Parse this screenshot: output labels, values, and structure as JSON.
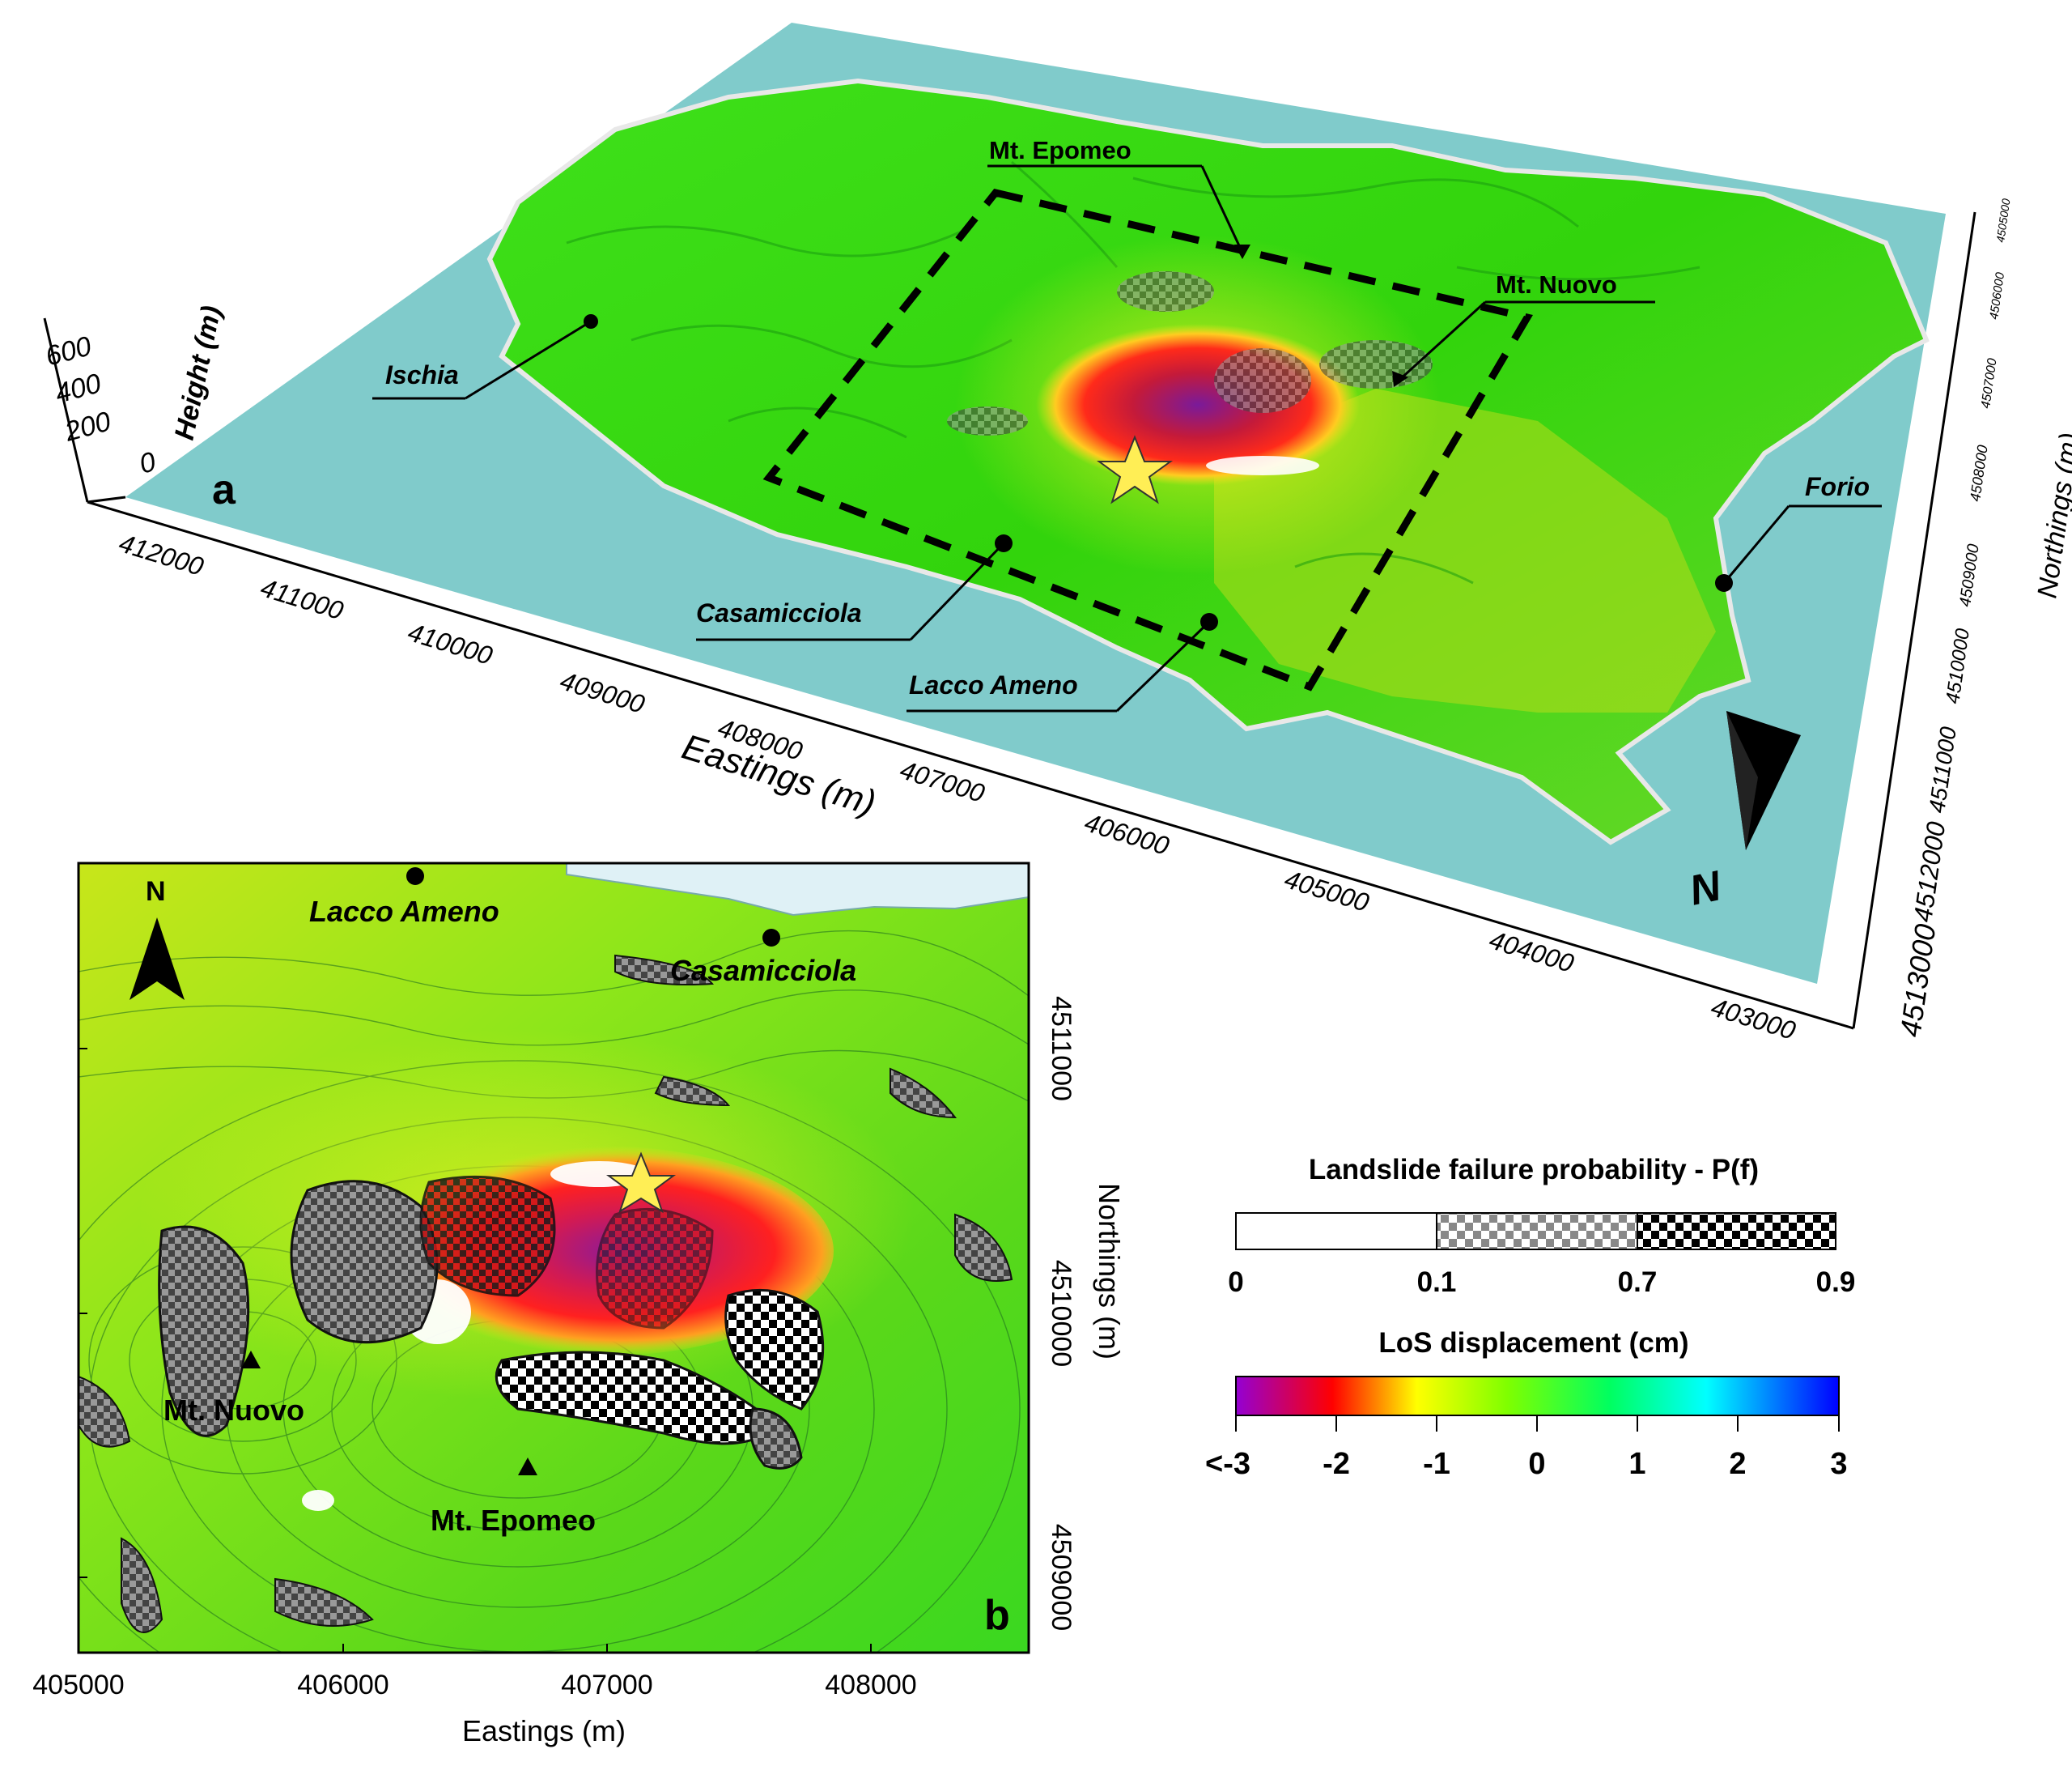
{
  "panel_a": {
    "label": "a",
    "places": [
      {
        "name": "Ischia"
      },
      {
        "name": "Casamicciola"
      },
      {
        "name": "Lacco Ameno"
      },
      {
        "name": "Forio"
      }
    ],
    "peaks": [
      {
        "name": "Mt. Epomeo"
      },
      {
        "name": "Mt. Nuovo"
      }
    ],
    "height_axis": {
      "title": "Height (m)",
      "ticks": [
        "600",
        "400",
        "200",
        "0"
      ]
    },
    "eastings_axis": {
      "title": "Eastings (m)",
      "ticks": [
        "412000",
        "411000",
        "410000",
        "409000",
        "408000",
        "407000",
        "406000",
        "405000",
        "404000",
        "403000"
      ]
    },
    "northings_axis": {
      "title": "Northings (m)",
      "ticks": [
        "4513000",
        "4512000",
        "4511000",
        "4510000",
        "4509000",
        "4508000",
        "4507000",
        "4506000",
        "4505000"
      ]
    },
    "north_label": "N"
  },
  "panel_b": {
    "label": "b",
    "north_label": "N",
    "places": [
      {
        "name": "Lacco Ameno"
      },
      {
        "name": "Casamicciola"
      }
    ],
    "peaks": [
      {
        "name": "Mt. Nuovo"
      },
      {
        "name": "Mt. Epomeo"
      }
    ],
    "x_axis": {
      "title": "Eastings (m)",
      "ticks": [
        "405000",
        "406000",
        "407000",
        "408000"
      ]
    },
    "y_axis": {
      "title": "Northings (m)",
      "ticks": [
        "4511000",
        "4510000",
        "4509000"
      ]
    }
  },
  "legend_pf": {
    "title": "Landslide failure probability - P(f)",
    "ticks": [
      "0",
      "0.1",
      "0.7",
      "0.9"
    ],
    "classes": [
      "none",
      "medium-checker",
      "coarse-checker"
    ]
  },
  "legend_los": {
    "title": "LoS displacement (cm)",
    "ticks": [
      "<-3",
      "-2",
      "-1",
      "0",
      "1",
      "2",
      "3"
    ],
    "colors": [
      "#9400d3",
      "#ff0000",
      "#ffff00",
      "#7fff00",
      "#00ff7f",
      "#00ffff",
      "#0000ff"
    ]
  },
  "colors": {
    "sea": "#80cbcb",
    "terrain_green": "#33dd11",
    "terrain_yellow": "#d8e81a",
    "deformation_red": "#e51c1c",
    "deformation_purple": "#8b1a9a",
    "star": "#ffee55"
  }
}
